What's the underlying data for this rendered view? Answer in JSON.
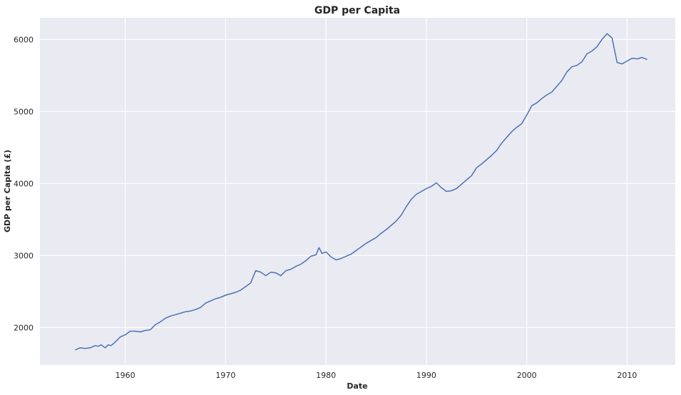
{
  "chart_data": {
    "type": "line",
    "title": "GDP per Capita",
    "xlabel": "Date",
    "ylabel": "GDP per Capita (£)",
    "xlim": [
      1951.5,
      2014.8
    ],
    "ylim": [
      1480,
      6300
    ],
    "x_ticks": [
      1960,
      1970,
      1980,
      1990,
      2000,
      2010
    ],
    "y_ticks": [
      2000,
      3000,
      4000,
      5000,
      6000
    ],
    "grid": true,
    "colors": {
      "background": "#eaeaf2",
      "grid": "#ffffff",
      "line": "#4c72b0"
    },
    "series": [
      {
        "x": [
          1955,
          1955.5,
          1956,
          1956.5,
          1957,
          1957.3,
          1957.6,
          1958,
          1958.3,
          1958.6,
          1959,
          1959.5,
          1960,
          1960.5,
          1961,
          1961.5,
          1962,
          1962.5,
          1963,
          1963.5,
          1964,
          1964.5,
          1965,
          1965.5,
          1966,
          1966.5,
          1967,
          1967.5,
          1968,
          1968.5,
          1969,
          1969.5,
          1970,
          1970.5,
          1971,
          1971.5,
          1972,
          1972.5,
          1973,
          1973.5,
          1974,
          1974.5,
          1975,
          1975.5,
          1976,
          1976.5,
          1977,
          1977.5,
          1978,
          1978.5,
          1979,
          1979.3,
          1979.6,
          1980,
          1980.5,
          1981,
          1981.5,
          1982,
          1982.5,
          1983,
          1983.5,
          1984,
          1984.5,
          1985,
          1985.5,
          1986,
          1986.5,
          1987,
          1987.5,
          1988,
          1988.5,
          1989,
          1989.5,
          1990,
          1990.5,
          1991,
          1991.5,
          1992,
          1992.5,
          1993,
          1993.5,
          1994,
          1994.5,
          1995,
          1995.5,
          1996,
          1996.5,
          1997,
          1997.5,
          1998,
          1998.5,
          1999,
          1999.5,
          2000,
          2000.5,
          2001,
          2001.5,
          2002,
          2002.5,
          2003,
          2003.5,
          2004,
          2004.5,
          2005,
          2005.5,
          2006,
          2006.5,
          2007,
          2007.5,
          2008,
          2008.5,
          2009,
          2009.5,
          2010,
          2010.5,
          2011,
          2011.5,
          2012
        ],
        "values": [
          1690,
          1720,
          1710,
          1720,
          1750,
          1740,
          1760,
          1720,
          1760,
          1750,
          1800,
          1870,
          1900,
          1950,
          1950,
          1940,
          1960,
          1970,
          2040,
          2080,
          2130,
          2160,
          2180,
          2200,
          2220,
          2230,
          2250,
          2280,
          2340,
          2370,
          2400,
          2420,
          2450,
          2470,
          2490,
          2520,
          2570,
          2620,
          2790,
          2770,
          2720,
          2770,
          2760,
          2720,
          2790,
          2810,
          2850,
          2880,
          2930,
          2990,
          3010,
          3110,
          3030,
          3050,
          2980,
          2940,
          2960,
          2990,
          3020,
          3070,
          3120,
          3170,
          3210,
          3250,
          3310,
          3360,
          3420,
          3480,
          3560,
          3680,
          3780,
          3850,
          3890,
          3930,
          3960,
          4010,
          3940,
          3890,
          3900,
          3930,
          3990,
          4050,
          4110,
          4220,
          4270,
          4330,
          4390,
          4460,
          4560,
          4640,
          4720,
          4780,
          4830,
          4950,
          5080,
          5120,
          5180,
          5230,
          5270,
          5350,
          5430,
          5550,
          5620,
          5640,
          5690,
          5800,
          5840,
          5900,
          6000,
          6080,
          6020,
          5680,
          5660,
          5700,
          5740,
          5730,
          5750,
          5720
        ]
      }
    ]
  }
}
